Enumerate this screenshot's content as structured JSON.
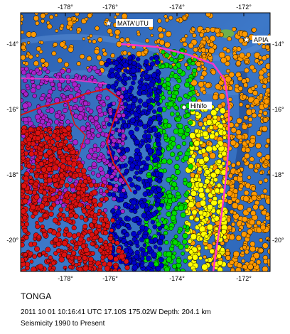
{
  "map": {
    "x_ticks": [
      "-178°",
      "-176°",
      "-174°",
      "-172°"
    ],
    "y_ticks": [
      "-14°",
      "-16°",
      "-18°",
      "-20°"
    ],
    "cities": [
      {
        "name": "MATA'UTU",
        "marker": "star-icon"
      },
      {
        "name": "APIA",
        "marker": "star-icon"
      },
      {
        "name": "Hihifo",
        "marker": "dot-icon"
      }
    ],
    "depth_colors": {
      "shallow": "#ff9900",
      "mid_shallow": "#ffff00",
      "mid": "#00dd00",
      "deep": "#0000cc",
      "deeper": "#aa22cc",
      "deepest": "#dd1111",
      "boundary": "#ff33cc",
      "inner_boundary": "#dd1111"
    }
  },
  "caption": {
    "title": "TONGA",
    "event": "2011 10 01 10:16:41 UTC 17.10S 175.02W Depth: 204.1 km",
    "range": "Seismicity 1990 to Present"
  }
}
